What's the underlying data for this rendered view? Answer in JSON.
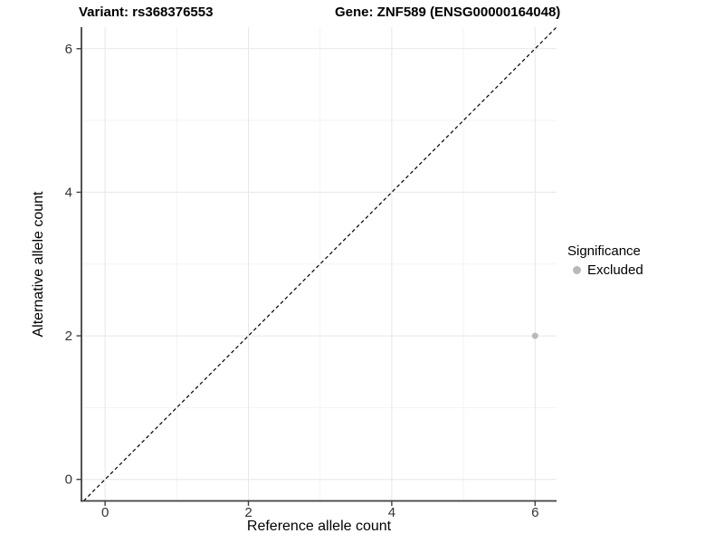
{
  "chart_data": {
    "type": "scatter",
    "titles": [
      "Variant: rs368376553",
      "Gene: ZNF589 (ENSG00000164048)"
    ],
    "xlabel": "Reference allele count",
    "ylabel": "Alternative allele count",
    "xlim": [
      -0.33,
      6.3
    ],
    "ylim": [
      -0.3,
      6.3
    ],
    "xticks": [
      0,
      2,
      4,
      6
    ],
    "yticks": [
      0,
      2,
      4,
      6
    ],
    "xticks_minor": [
      1,
      3,
      5
    ],
    "yticks_minor": [
      1,
      3,
      5
    ],
    "grid": "major+minor",
    "identity_line": {
      "slope": 1,
      "intercept": 0,
      "style": "dashed",
      "color": "#000000"
    },
    "series": [
      {
        "name": "Excluded",
        "color": "#b9b9b9",
        "points": [
          {
            "x": 6,
            "y": 2
          }
        ]
      }
    ],
    "legend": {
      "title": "Significance",
      "position": "right",
      "items": [
        {
          "label": "Excluded",
          "color": "#b9b9b9",
          "marker": "circle"
        }
      ]
    },
    "colors": {
      "background": "#ffffff",
      "grid_major": "#e7e7e7",
      "grid_minor": "#f3f3f3",
      "axis_line": "#404040",
      "tick_label": "#333333",
      "point": "#b9b9b9"
    }
  }
}
